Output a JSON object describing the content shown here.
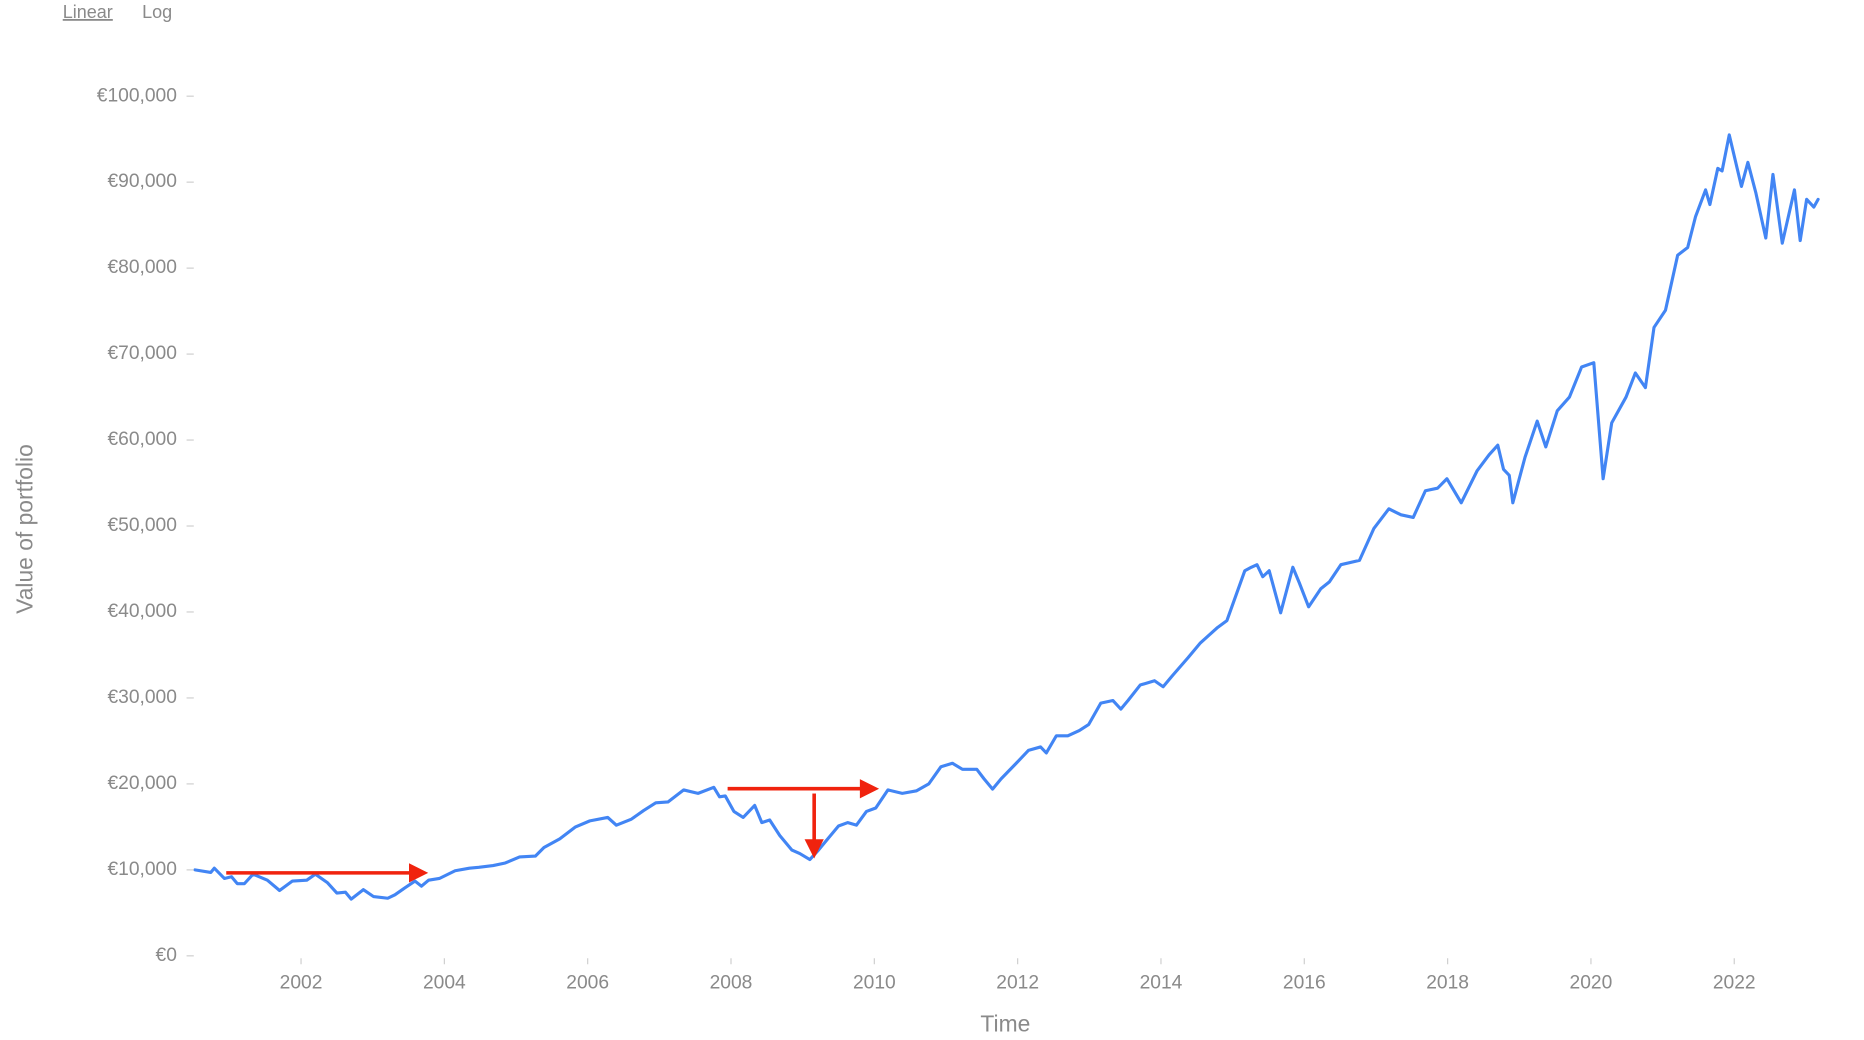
{
  "controls": {
    "scale_options": [
      "Linear",
      "Log"
    ],
    "selected": 0
  },
  "chart_data": {
    "type": "line",
    "x_label": "Time",
    "y_label": "Value of portfolio",
    "color": "#4285f4",
    "log_scale": false,
    "grid": false,
    "xlim": [
      2000.52,
      2023.17
    ],
    "xticks": [
      2002,
      2004,
      2006,
      2008,
      2010,
      2012,
      2014,
      2016,
      2018,
      2020,
      2022
    ],
    "ylim": [
      0,
      100000
    ],
    "yticks": [
      {
        "value": 0,
        "label": "€0"
      },
      {
        "value": 10000,
        "label": "€10,000"
      },
      {
        "value": 20000,
        "label": "€20,000"
      },
      {
        "value": 30000,
        "label": "€30,000"
      },
      {
        "value": 40000,
        "label": "€40,000"
      },
      {
        "value": 50000,
        "label": "€50,000"
      },
      {
        "value": 60000,
        "label": "€60,000"
      },
      {
        "value": 70000,
        "label": "€70,000"
      },
      {
        "value": 80000,
        "label": "€80,000"
      },
      {
        "value": 90000,
        "label": "€90,000"
      },
      {
        "value": 100000,
        "label": "€100,000"
      }
    ],
    "x": [
      2000.52,
      2000.74,
      2000.79,
      2000.93,
      2001.03,
      2001.11,
      2001.21,
      2001.33,
      2001.53,
      2001.7,
      2001.88,
      2002.08,
      2002.2,
      2002.37,
      2002.5,
      2002.62,
      2002.7,
      2002.87,
      2003.01,
      2003.21,
      2003.31,
      2003.43,
      2003.59,
      2003.68,
      2003.78,
      2003.93,
      2004.15,
      2004.35,
      2004.48,
      2004.68,
      2004.85,
      2005.05,
      2005.27,
      2005.39,
      2005.61,
      2005.72,
      2005.83,
      2006.03,
      2006.28,
      2006.4,
      2006.61,
      2006.78,
      2006.95,
      2007.12,
      2007.34,
      2007.54,
      2007.76,
      2007.84,
      2007.92,
      2008.04,
      2008.17,
      2008.33,
      2008.43,
      2008.54,
      2008.68,
      2008.85,
      2008.96,
      2009.1,
      2009.21,
      2009.35,
      2009.5,
      2009.63,
      2009.75,
      2009.89,
      2010.02,
      2010.19,
      2010.39,
      2010.59,
      2010.76,
      2010.93,
      2011.09,
      2011.23,
      2011.43,
      2011.53,
      2011.65,
      2011.77,
      2011.98,
      2012.15,
      2012.32,
      2012.4,
      2012.54,
      2012.7,
      2012.86,
      2012.99,
      2013.16,
      2013.33,
      2013.44,
      2013.54,
      2013.71,
      2013.91,
      2014.03,
      2014.16,
      2014.38,
      2014.55,
      2014.79,
      2014.92,
      2015.17,
      2015.26,
      2015.34,
      2015.42,
      2015.51,
      2015.67,
      2015.84,
      2015.93,
      2016.06,
      2016.23,
      2016.35,
      2016.51,
      2016.77,
      2016.97,
      2017.18,
      2017.35,
      2017.52,
      2017.69,
      2017.86,
      2017.99,
      2018.19,
      2018.41,
      2018.58,
      2018.7,
      2018.78,
      2018.86,
      2018.91,
      2019.08,
      2019.25,
      2019.37,
      2019.53,
      2019.7,
      2019.87,
      2020.04,
      2020.17,
      2020.29,
      2020.49,
      2020.62,
      2020.76,
      2020.88,
      2021.04,
      2021.21,
      2021.35,
      2021.46,
      2021.6,
      2021.66,
      2021.77,
      2021.83,
      2021.93,
      2022.1,
      2022.19,
      2022.3,
      2022.44,
      2022.54,
      2022.67,
      2022.84,
      2022.92,
      2023.01,
      2023.11,
      2023.17
    ],
    "values": [
      10000,
      9700,
      10200,
      9000,
      9200,
      8400,
      8400,
      9500,
      8800,
      7600,
      8700,
      8800,
      9500,
      8500,
      7300,
      7400,
      6600,
      7700,
      6900,
      6700,
      7100,
      7800,
      8700,
      8100,
      8800,
      9000,
      9900,
      10200,
      10300,
      10500,
      10800,
      11500,
      11600,
      12600,
      13600,
      14300,
      15000,
      15700,
      16100,
      15200,
      15900,
      16900,
      17800,
      17900,
      19300,
      18900,
      19600,
      18500,
      18600,
      16800,
      16100,
      17500,
      15500,
      15800,
      14000,
      12300,
      11900,
      11200,
      12200,
      13600,
      15100,
      15500,
      15200,
      16800,
      17200,
      19300,
      18900,
      19200,
      20000,
      22000,
      22400,
      21700,
      21700,
      20600,
      19400,
      20600,
      22400,
      23900,
      24300,
      23600,
      25600,
      25600,
      26200,
      26900,
      29400,
      29700,
      28700,
      29700,
      31500,
      32000,
      31300,
      32600,
      34700,
      36400,
      38200,
      39000,
      44800,
      45200,
      45500,
      44100,
      44800,
      39900,
      45200,
      43400,
      40600,
      42700,
      43500,
      45500,
      46000,
      49700,
      52000,
      51300,
      51000,
      54100,
      54400,
      55500,
      52700,
      56400,
      58300,
      59400,
      56600,
      55900,
      52700,
      58000,
      62200,
      59200,
      63400,
      65000,
      68500,
      69000,
      55500,
      62000,
      65000,
      67800,
      66100,
      73100,
      75100,
      81500,
      82400,
      86000,
      89100,
      87400,
      91600,
      91300,
      95500,
      89500,
      92300,
      88800,
      83500,
      90900,
      82900,
      89100,
      83200,
      88000,
      87100,
      88000
    ]
  }
}
